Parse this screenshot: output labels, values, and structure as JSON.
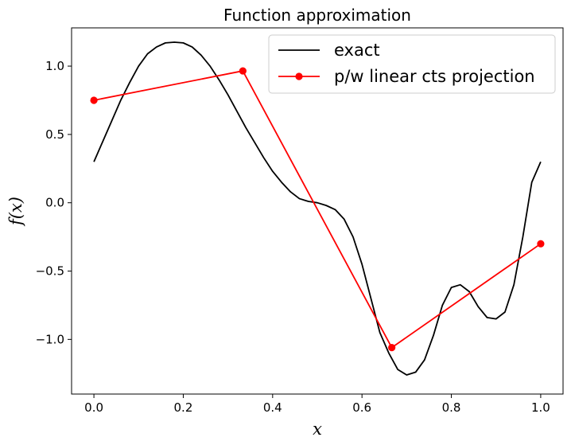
{
  "chart_data": {
    "type": "line",
    "title": "Function approximation",
    "xlabel": "x",
    "ylabel": "f(x)",
    "xlim": [
      -0.05,
      1.05
    ],
    "ylim": [
      -1.4,
      1.28
    ],
    "xticks": [
      0.0,
      0.2,
      0.4,
      0.6,
      0.8,
      1.0
    ],
    "xtick_labels": [
      "0.0",
      "0.2",
      "0.4",
      "0.6",
      "0.8",
      "1.0"
    ],
    "yticks": [
      -1.0,
      -0.5,
      0.0,
      0.5,
      1.0
    ],
    "ytick_labels": [
      "−1.0",
      "−0.5",
      "0.0",
      "0.5",
      "1.0"
    ],
    "grid": false,
    "legend_position": "top-right",
    "series": [
      {
        "name": "exact",
        "color": "#000000",
        "marker": "none",
        "x": [
          0.0,
          0.02,
          0.04,
          0.06,
          0.08,
          0.1,
          0.12,
          0.14,
          0.16,
          0.18,
          0.2,
          0.22,
          0.24,
          0.26,
          0.28,
          0.3,
          0.32,
          0.34,
          0.36,
          0.38,
          0.4,
          0.42,
          0.44,
          0.46,
          0.48,
          0.5,
          0.52,
          0.54,
          0.56,
          0.58,
          0.6,
          0.62,
          0.64,
          0.66,
          0.68,
          0.7,
          0.72,
          0.74,
          0.76,
          0.78,
          0.8,
          0.82,
          0.84,
          0.86,
          0.88,
          0.9,
          0.92,
          0.94,
          0.96,
          0.98,
          1.0
        ],
        "y": [
          0.3,
          0.45,
          0.6,
          0.75,
          0.88,
          1.0,
          1.09,
          1.14,
          1.17,
          1.175,
          1.17,
          1.14,
          1.08,
          1.0,
          0.9,
          0.79,
          0.67,
          0.55,
          0.44,
          0.33,
          0.23,
          0.15,
          0.08,
          0.03,
          0.01,
          0.0,
          -0.02,
          -0.05,
          -0.12,
          -0.25,
          -0.45,
          -0.7,
          -0.95,
          -1.1,
          -1.22,
          -1.26,
          -1.24,
          -1.15,
          -0.97,
          -0.75,
          -0.62,
          -0.6,
          -0.65,
          -0.76,
          -0.84,
          -0.85,
          -0.8,
          -0.6,
          -0.25,
          0.15,
          0.3
        ]
      },
      {
        "name": "p/w linear cts projection",
        "color": "#ff0000",
        "marker": "circle",
        "x": [
          0.0,
          0.3333,
          0.6667,
          1.0
        ],
        "y": [
          0.75,
          0.965,
          -1.06,
          -0.3
        ]
      }
    ]
  }
}
